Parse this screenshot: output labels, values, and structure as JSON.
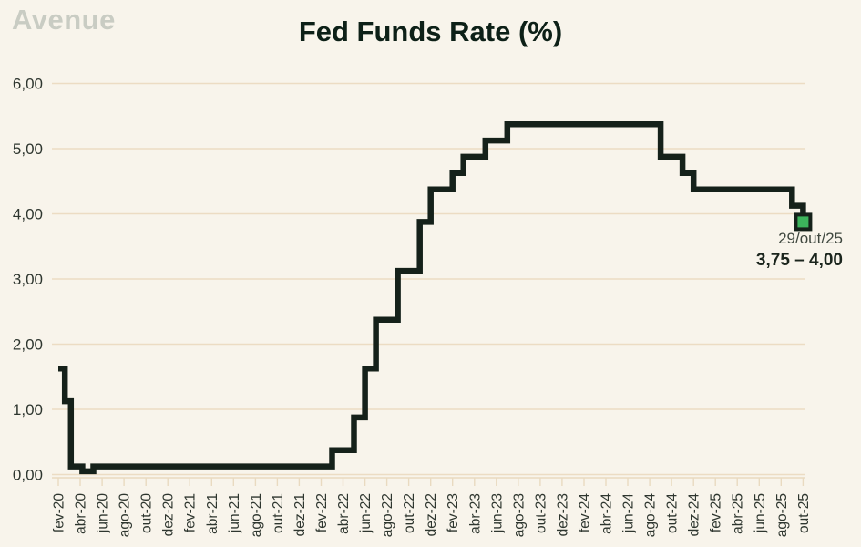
{
  "header": {
    "logo": "Avenue",
    "title": "Fed Funds Rate (%)"
  },
  "annotation": {
    "date": "29/out/25",
    "range": "3,75 – 4,00"
  },
  "colors": {
    "background": "#f8f4eb",
    "grid": "#ecdcc3",
    "axis": "#e9dac0",
    "axis_text": "#2e362f",
    "line": "#15211a",
    "marker_fill": "#3cb45c",
    "marker_stroke": "#15211a",
    "title_text": "#0d2017",
    "logo_text": "#c9ccc3"
  },
  "chart_data": {
    "type": "line",
    "subtype": "step",
    "title": "Fed Funds Rate (%)",
    "grid": "horizontal gridlines on, no plot border",
    "legend": "none",
    "ylim": [
      0,
      6
    ],
    "yticks": [
      0,
      1,
      2,
      3,
      4,
      5,
      6
    ],
    "ytick_labels": [
      "0,00",
      "1,00",
      "2,00",
      "3,00",
      "4,00",
      "5,00",
      "6,00"
    ],
    "categories": [
      "fev-20",
      "abr-20",
      "jun-20",
      "ago-20",
      "out-20",
      "dez-20",
      "fev-21",
      "abr-21",
      "jun-21",
      "ago-21",
      "out-21",
      "dez-21",
      "fev-22",
      "abr-22",
      "jun-22",
      "ago-22",
      "out-22",
      "dez-22",
      "fev-23",
      "abr-23",
      "jun-23",
      "ago-23",
      "out-23",
      "dez-23",
      "fev-24",
      "abr-24",
      "jun-24",
      "ago-24",
      "out-24",
      "dez-24",
      "fev-25",
      "abr-25",
      "jun-25",
      "ago-25",
      "out-25"
    ],
    "x_unit": "months since fev-20 (categories mark every 2nd month; steps use fractional months for intra-month moves)",
    "steps_note": "step-after series of [month_offset, rate_midpoint_%]; value holds until next change",
    "steps": [
      [
        0,
        1.625
      ],
      [
        0.6,
        1.125
      ],
      [
        1.15,
        0.125
      ],
      [
        2.2,
        0.05
      ],
      [
        3.2,
        0.125
      ],
      [
        25,
        0.375
      ],
      [
        27,
        0.875
      ],
      [
        28,
        1.625
      ],
      [
        29,
        2.375
      ],
      [
        31,
        3.125
      ],
      [
        33,
        3.875
      ],
      [
        34,
        4.375
      ],
      [
        36,
        4.625
      ],
      [
        37,
        4.875
      ],
      [
        39,
        5.125
      ],
      [
        41,
        5.375
      ],
      [
        55,
        4.875
      ],
      [
        57,
        4.625
      ],
      [
        58,
        4.375
      ],
      [
        67,
        4.125
      ],
      [
        68,
        3.875
      ]
    ],
    "changes": [
      {
        "date": "fev/20",
        "value": 1.625
      },
      {
        "date": "mar/20",
        "value": 1.125
      },
      {
        "date": "mar/20",
        "value": 0.125
      },
      {
        "date": "abr/20",
        "value": 0.05
      },
      {
        "date": "mai/20",
        "value": 0.125
      },
      {
        "date": "mar/22",
        "value": 0.375
      },
      {
        "date": "mai/22",
        "value": 0.875
      },
      {
        "date": "jun/22",
        "value": 1.625
      },
      {
        "date": "jul/22",
        "value": 2.375
      },
      {
        "date": "set/22",
        "value": 3.125
      },
      {
        "date": "nov/22",
        "value": 3.875
      },
      {
        "date": "dez/22",
        "value": 4.375
      },
      {
        "date": "fev/23",
        "value": 4.625
      },
      {
        "date": "mar/23",
        "value": 4.875
      },
      {
        "date": "mai/23",
        "value": 5.125
      },
      {
        "date": "jul/23",
        "value": 5.375
      },
      {
        "date": "set/24",
        "value": 4.875
      },
      {
        "date": "nov/24",
        "value": 4.625
      },
      {
        "date": "dez/24",
        "value": 4.375
      },
      {
        "date": "set/25",
        "value": 4.125
      },
      {
        "date": "out/25",
        "value": 3.875
      }
    ],
    "last_point": {
      "date": "29/out/25",
      "range": "3,75 – 4,00",
      "midpoint": 3.875,
      "marker": "green square"
    }
  }
}
